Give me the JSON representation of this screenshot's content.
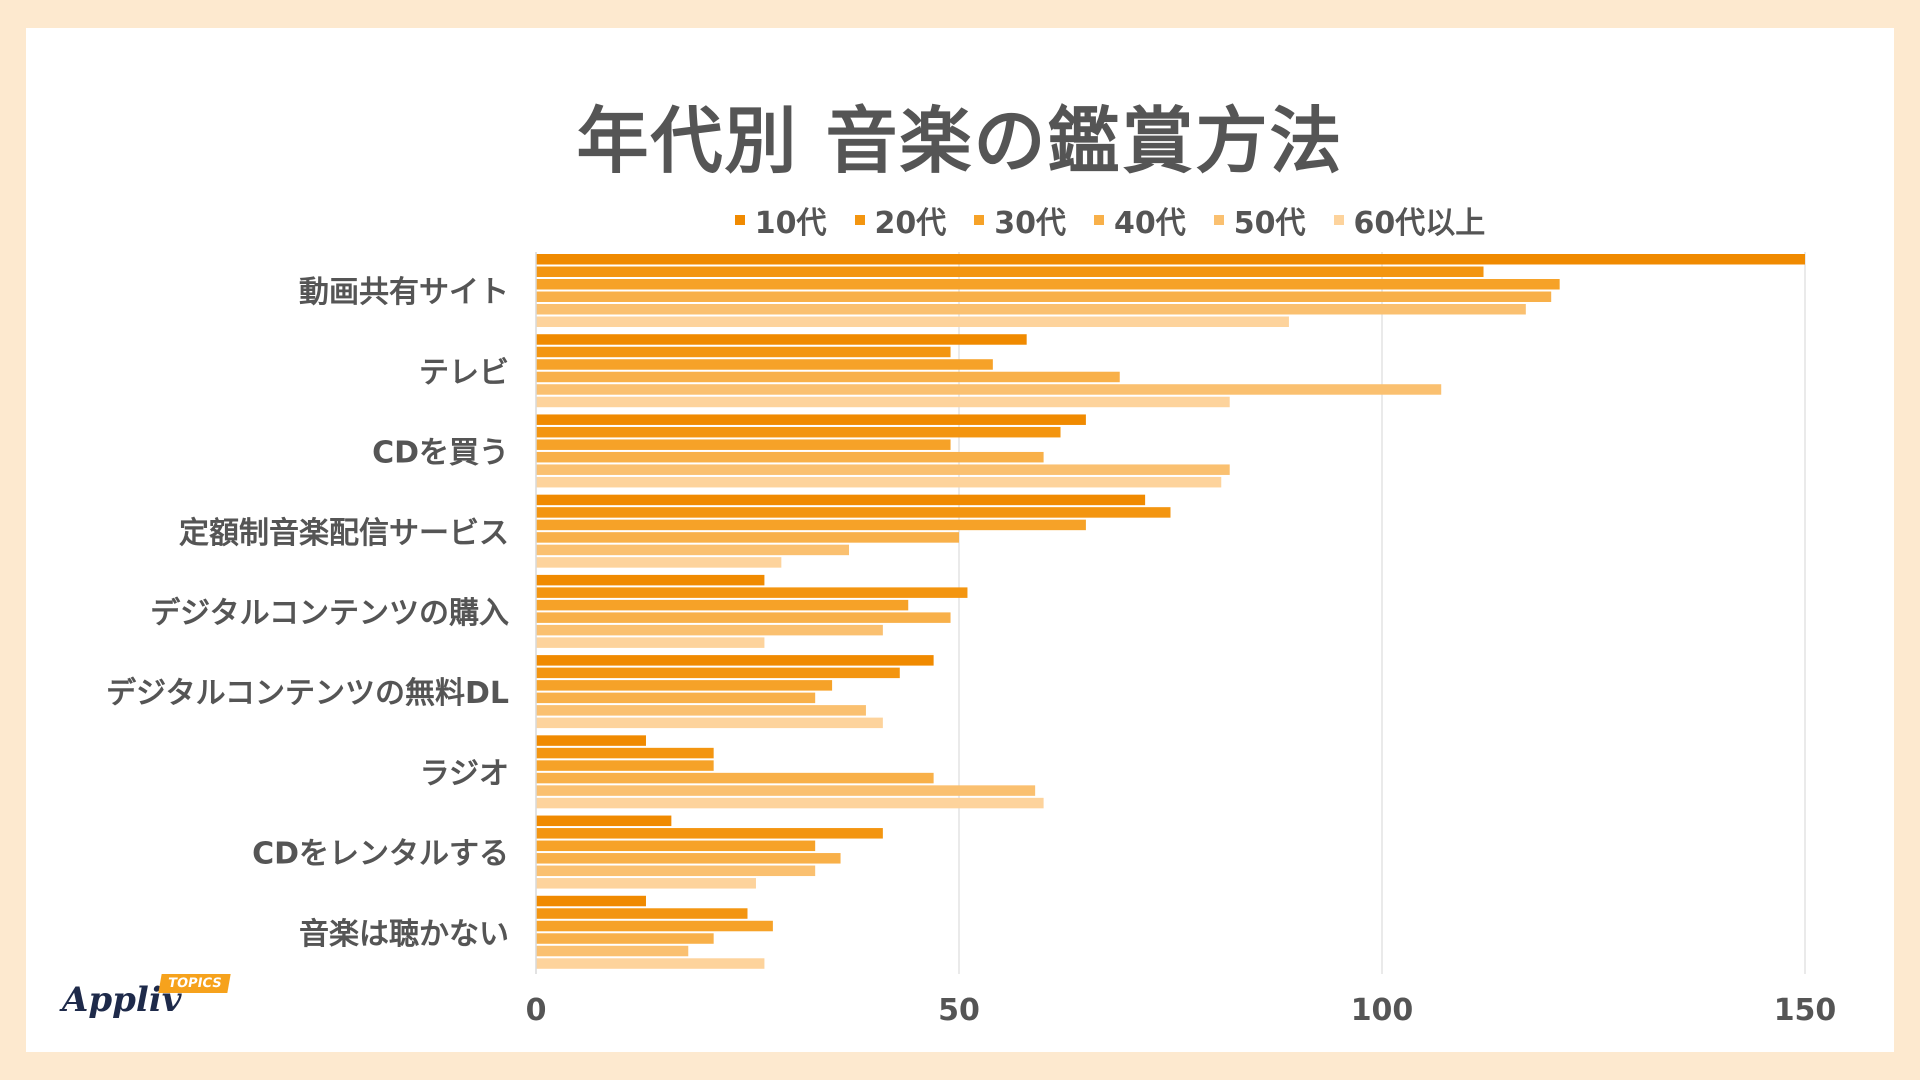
{
  "chart_data": {
    "type": "bar",
    "orientation": "horizontal",
    "title": "年代別 音楽の鑑賞方法",
    "xlabel": "",
    "ylabel": "",
    "xlim": [
      0,
      150
    ],
    "xticks": [
      0,
      50,
      100,
      150
    ],
    "grid": true,
    "legend_position": "top",
    "categories": [
      "動画共有サイト",
      "テレビ",
      "CDを買う",
      "定額制音楽配信サービス",
      "デジタルコンテンツの購入",
      "デジタルコンテンツの無料DL",
      "ラジオ",
      "CDをレンタルする",
      "音楽は聴かない"
    ],
    "series": [
      {
        "name": "10代",
        "color": "#f08a00",
        "values": [
          150,
          58,
          65,
          72,
          27,
          47,
          13,
          16,
          13
        ]
      },
      {
        "name": "20代",
        "color": "#f39510",
        "values": [
          112,
          49,
          62,
          75,
          51,
          43,
          21,
          41,
          25
        ]
      },
      {
        "name": "30代",
        "color": "#f6a228",
        "values": [
          121,
          54,
          49,
          65,
          44,
          35,
          21,
          33,
          28
        ]
      },
      {
        "name": "40代",
        "color": "#f8b049",
        "values": [
          120,
          69,
          60,
          50,
          49,
          33,
          47,
          36,
          21
        ]
      },
      {
        "name": "50代",
        "color": "#fac070",
        "values": [
          117,
          107,
          82,
          37,
          41,
          39,
          59,
          33,
          18
        ]
      },
      {
        "name": "60代以上",
        "color": "#fdd39c",
        "values": [
          89,
          82,
          81,
          29,
          27,
          41,
          60,
          26,
          27
        ]
      }
    ]
  },
  "logo": {
    "text": "Appliv",
    "badge": "TOPICS"
  }
}
